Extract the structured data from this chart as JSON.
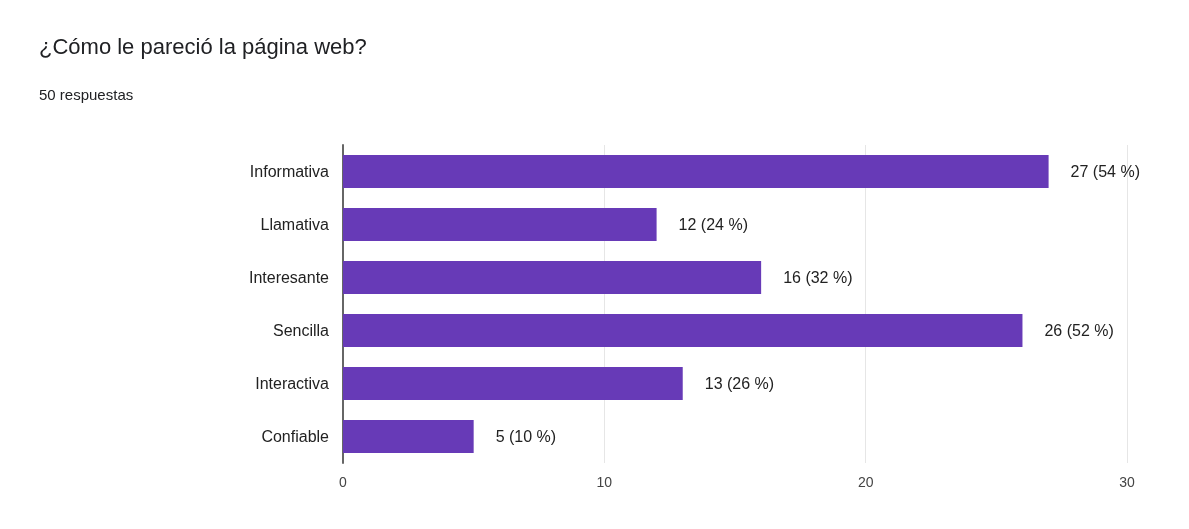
{
  "chart_data": {
    "type": "bar",
    "orientation": "horizontal",
    "title": "¿Cómo le pareció la página web?",
    "subtitle": "50 respuestas",
    "categories": [
      "Informativa",
      "Llamativa",
      "Interesante",
      "Sencilla",
      "Interactiva",
      "Confiable"
    ],
    "values": [
      27,
      12,
      16,
      26,
      13,
      5
    ],
    "value_labels": [
      "27 (54 %)",
      "12 (24 %)",
      "16 (32 %)",
      "26 (52 %)",
      "13 (26 %)",
      "5 (10 %)"
    ],
    "color": "#673ab7",
    "xlim": [
      0,
      30
    ],
    "xticks": [
      0,
      10,
      20,
      30
    ],
    "grid": "x"
  }
}
